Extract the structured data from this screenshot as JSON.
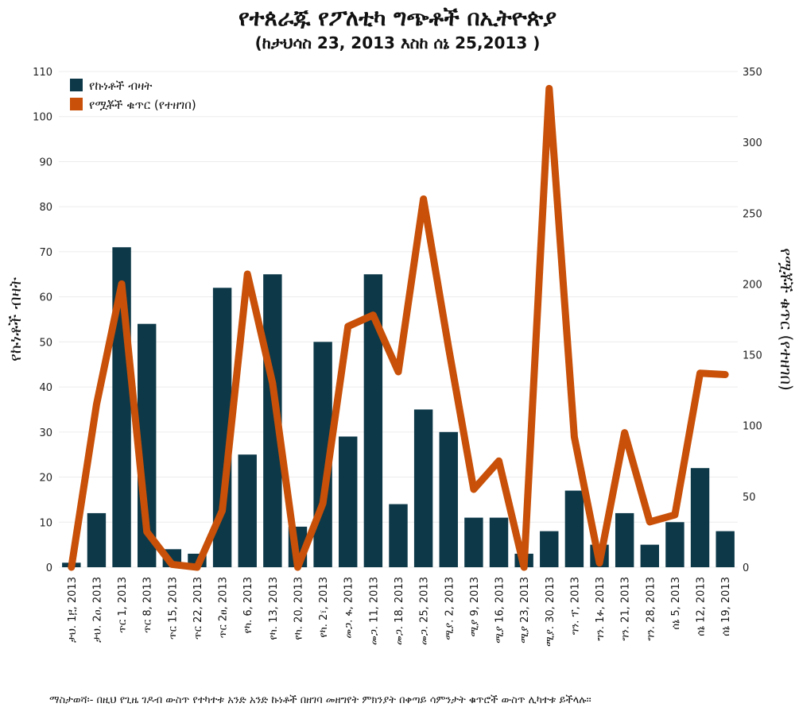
{
  "chart_data": {
    "type": "bar+line",
    "title": "የተጰራጁ የፖለቲካ ግጭቶች በኢትዮጵያ",
    "subtitle": "(ከታህሳስ 23, 2013  እስከ ሰኔ 25,2013 )",
    "ylabel_left": "የኩነቶች ብዛት",
    "ylabel_right": "የሟቾች ቁጥር (የተዘገበ)",
    "ylim_left": [
      0,
      110
    ],
    "ylim_right": [
      0,
      350
    ],
    "yticks_left": [
      0,
      10,
      20,
      30,
      40,
      50,
      60,
      70,
      80,
      90,
      100,
      110
    ],
    "yticks_right": [
      0,
      50,
      100,
      150,
      200,
      250,
      300,
      350
    ],
    "grid": true,
    "legend": "top-left",
    "colors": {
      "bars": "#0c3848",
      "line": "#c85008"
    },
    "categories": [
      "ታህ. 1፫, 2013",
      "ታህ. 2ዐ, 2013",
      "ጥር 1, 2013",
      "ጥር 8, 2013",
      "ጥር 15, 2013",
      "ጥር 22, 2013",
      "ጥር 2ፀ, 2013",
      "የካ. 6, 2013",
      "የካ. 13, 2013",
      "የካ. 20, 2013",
      "የካ. 2፣, 2013",
      "መጋ. ፋ, 2013",
      "መጋ. 11, 2013",
      "መጋ. 18, 2013",
      "መጋ. 25, 2013",
      "ሚያ. 2, 2013",
      "ሚያ 9, 2013",
      "ሚያ 16, 2013",
      "ሚያ 23, 2013",
      "ሚያ. 30, 2013",
      "ግን. ፕ, 2013",
      "ግን. 1ፉ, 2013",
      "ግን. 21, 2013",
      "ግን. 28, 2013",
      "ሰኔ 5, 2013",
      "ሰኔ 12, 2013",
      "ሰኔ 19, 2013"
    ],
    "series": [
      {
        "name": "የኩነቶች ብዛት",
        "axis": "left",
        "type": "bar",
        "values": [
          1,
          12,
          71,
          54,
          4,
          3,
          62,
          25,
          65,
          9,
          50,
          29,
          65,
          14,
          35,
          30,
          11,
          11,
          3,
          8,
          17,
          5,
          12,
          5,
          10,
          22,
          8
        ]
      },
      {
        "name": "የሟቾች ቁጥር (የተዘገበ)",
        "axis": "right",
        "type": "line",
        "values": [
          0,
          115,
          200,
          25,
          2,
          0,
          40,
          207,
          130,
          0,
          45,
          170,
          178,
          138,
          260,
          155,
          55,
          75,
          0,
          338,
          92,
          3,
          95,
          32,
          37,
          137,
          136
        ]
      }
    ]
  },
  "note": "ማስታወሻ፡- በዚህ የጊዜ ገዶብ ውስጥ የተካተቱ አንድ አንድ ኩነቶች በዘገባ መዘግየት ምክንያት በቀጣይ ሳምንታት ቁጥሮች ውስጥ ሊካተቱ ይችላሉ።"
}
